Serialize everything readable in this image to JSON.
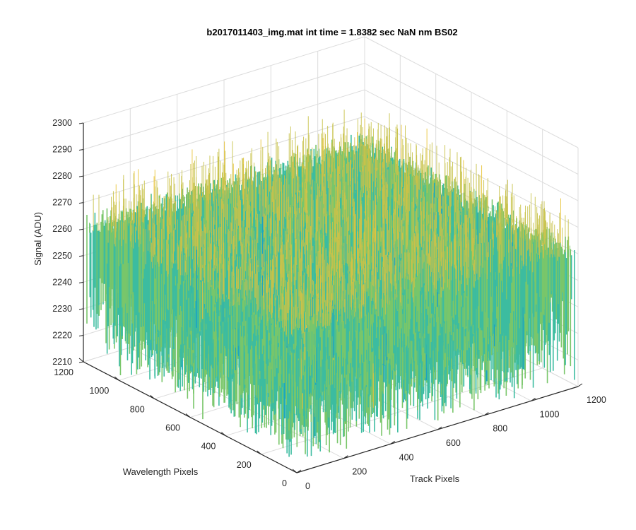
{
  "chart_data": {
    "type": "surface",
    "title": "b2017011403_img.mat int time = 1.8382 sec  NaN nm BS02",
    "xlabel": "Track Pixels",
    "ylabel": "Wavelength Pixels",
    "zlabel": "Signal (ADU)",
    "xlim": [
      0,
      1200
    ],
    "ylim": [
      0,
      1200
    ],
    "zlim": [
      2210,
      2300
    ],
    "x_ticks": [
      "0",
      "200",
      "400",
      "600",
      "800",
      "1000",
      "1200"
    ],
    "y_ticks": [
      "0",
      "200",
      "400",
      "600",
      "800",
      "1000",
      "1200"
    ],
    "z_ticks": [
      "2210",
      "2220",
      "2230",
      "2240",
      "2250",
      "2260",
      "2270",
      "2280",
      "2290",
      "2300"
    ],
    "grid": true,
    "colormap": [
      "#1f77c9",
      "#1aa3c3",
      "#3cbca0",
      "#79c66a",
      "#c8c24a",
      "#e8c43a"
    ],
    "surface_summary": {
      "mean_signal": 2250,
      "surface_top_signal": 2262,
      "min_spike_signal": 2215,
      "max_spike_signal": 2290
    }
  }
}
